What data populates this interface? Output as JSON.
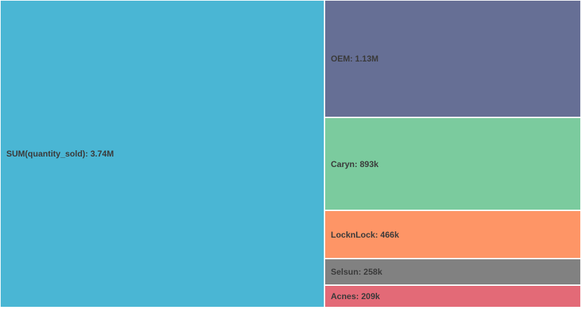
{
  "chart_data": {
    "type": "treemap",
    "title": "",
    "items": [
      {
        "name": "SUM(quantity_sold)",
        "display_value": "3.74M",
        "value": 3740000,
        "color": "#4ab6d4"
      },
      {
        "name": "OEM",
        "display_value": "1.13M",
        "value": 1130000,
        "color": "#666f95"
      },
      {
        "name": "Caryn",
        "display_value": "893k",
        "value": 893000,
        "color": "#7bcb9e"
      },
      {
        "name": "LocknLock",
        "display_value": "466k",
        "value": 466000,
        "color": "#fe9566"
      },
      {
        "name": "Selsun",
        "display_value": "258k",
        "value": 258000,
        "color": "#818181"
      },
      {
        "name": "Acnes",
        "display_value": "209k",
        "value": 209000,
        "color": "#e36a77"
      }
    ]
  }
}
